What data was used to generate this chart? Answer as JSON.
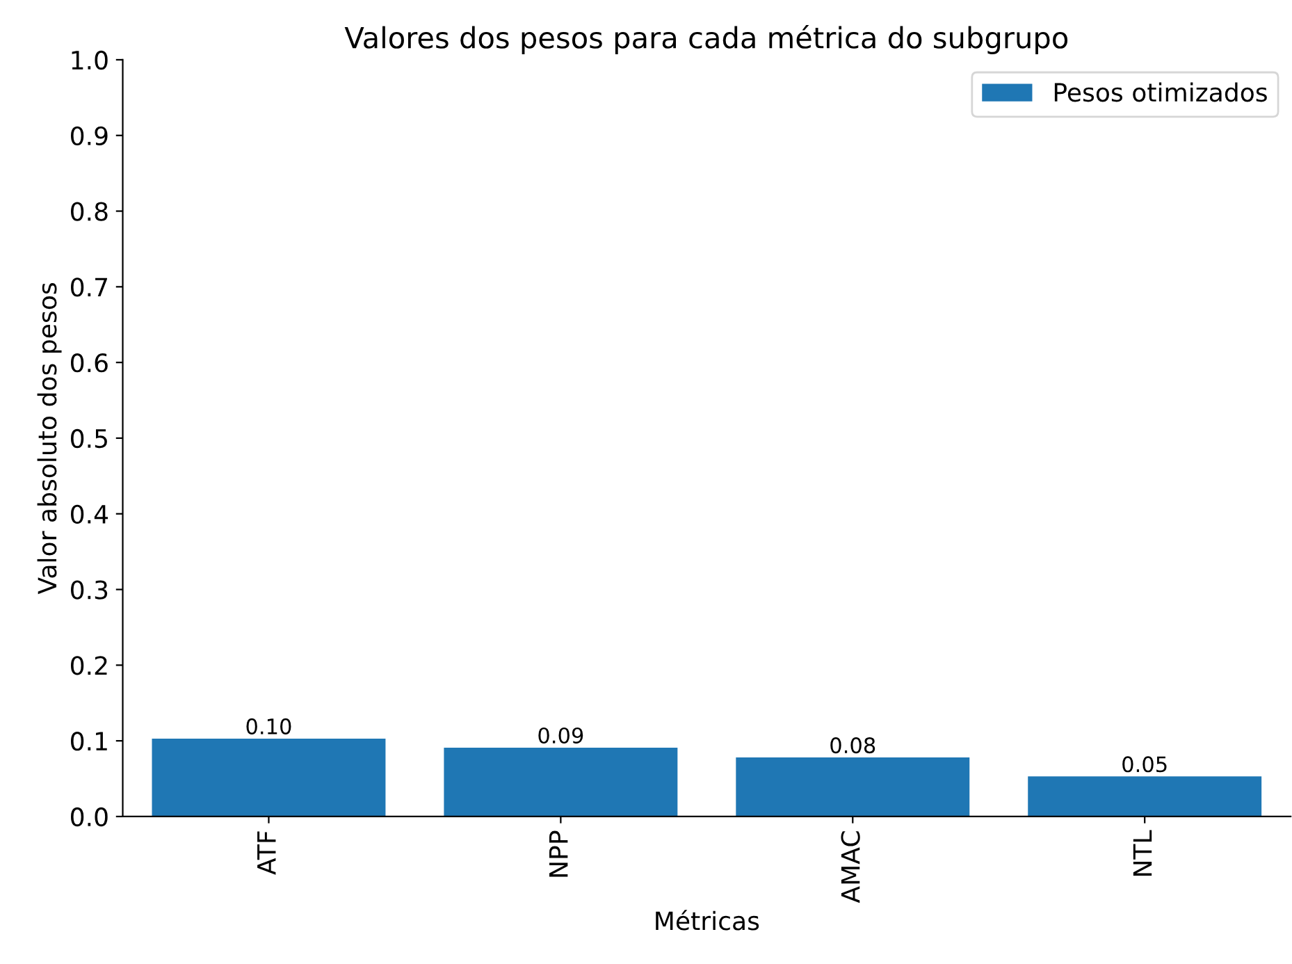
{
  "chart_data": {
    "type": "bar",
    "title": "Valores dos pesos para cada métrica do subgrupo",
    "xlabel": "Métricas",
    "ylabel": "Valor absoluto dos pesos",
    "categories": [
      "ATF",
      "NPP",
      "AMAC",
      "NTL"
    ],
    "series": [
      {
        "name": "Pesos otimizados",
        "color": "#1f77b4",
        "values": [
          0.103,
          0.091,
          0.078,
          0.053
        ],
        "value_labels": [
          "0.10",
          "0.09",
          "0.08",
          "0.05"
        ]
      }
    ],
    "ylim": [
      0,
      1.0
    ],
    "yticks": [
      {
        "value": 0,
        "label": "0.0"
      },
      0.1,
      0.2,
      0.3,
      0.4,
      0.5,
      0.6,
      0.7,
      0.8,
      0.9,
      {
        "value": 1,
        "label": "1.0"
      }
    ],
    "grid": false,
    "legend": "top right"
  }
}
